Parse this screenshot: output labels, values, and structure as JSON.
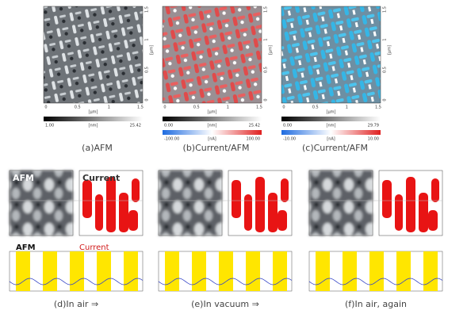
{
  "top_panels": [
    {
      "caption": "(a)AFM",
      "x_ticks": [
        "0",
        "0.5",
        "1",
        "1.5"
      ],
      "y_ticks": [
        "1.5",
        "1",
        "0.5",
        "0"
      ],
      "axis_unit": "[μm]",
      "scales": [
        {
          "min": "1.00",
          "max": "25.42",
          "unit": "[nm]"
        }
      ]
    },
    {
      "caption": "(b)Current/AFM",
      "x_ticks": [
        "0",
        "0.5",
        "1",
        "1.5"
      ],
      "y_ticks": [
        "1.5",
        "1",
        "0.5",
        "0"
      ],
      "axis_unit": "[μm]",
      "scales": [
        {
          "min": "0.00",
          "max": "25.42",
          "unit": "[nm]"
        },
        {
          "min": "-100.00",
          "max": "100.00",
          "unit": "[nA]"
        }
      ]
    },
    {
      "caption": "(c)Current/AFM",
      "x_ticks": [
        "0",
        "0.5",
        "1",
        "1.5"
      ],
      "y_ticks": [
        "1.5",
        "1",
        "0.5",
        "0"
      ],
      "axis_unit": "[μm]",
      "scales": [
        {
          "min": "0.00",
          "max": "29.79",
          "unit": "[nm]"
        },
        {
          "min": "-10.00",
          "max": "10.00",
          "unit": "[nA]"
        }
      ]
    }
  ],
  "bottom_panels": [
    {
      "caption": "(d)In air ⇒",
      "image_labels": [
        "AFM",
        "Current"
      ],
      "profile_labels": [
        "AFM",
        "Current"
      ]
    },
    {
      "caption": "(e)In vacuum ⇒"
    },
    {
      "caption": "(f)In air, again"
    }
  ]
}
